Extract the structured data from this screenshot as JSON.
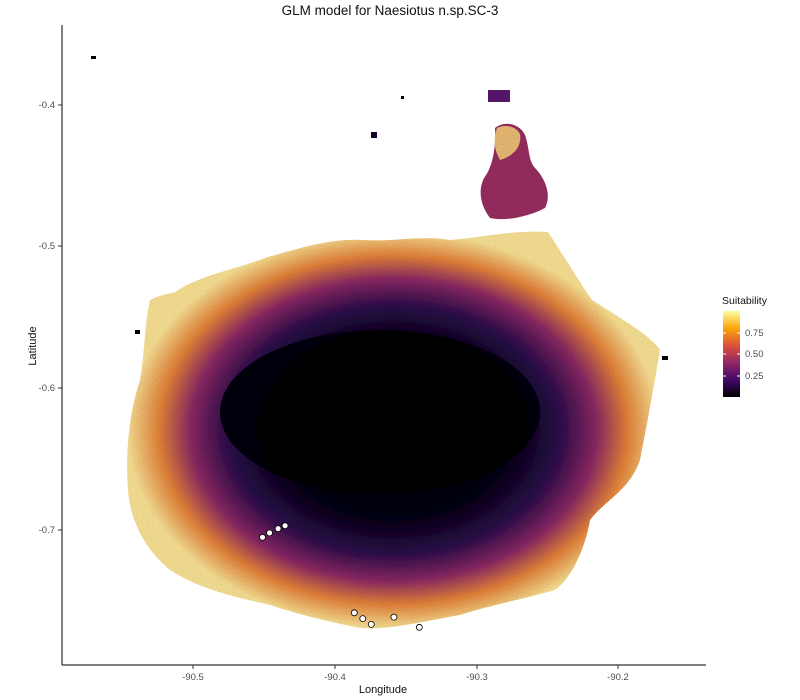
{
  "chart_data": {
    "type": "heatmap",
    "title": "GLM model for Naesiotus n.sp.SC-3",
    "xlabel": "Longitude",
    "ylabel": "Latitude",
    "x_ticks": [
      "-90.5",
      "-90.4",
      "-90.3",
      "-90.2"
    ],
    "y_ticks": [
      "-0.4",
      "-0.5",
      "-0.6",
      "-0.7"
    ],
    "xlim": [
      -90.595,
      -90.139
    ],
    "ylim": [
      -0.788,
      -0.347
    ],
    "legend": {
      "title": "Suitability",
      "placement": "right",
      "labels": [
        "0.75",
        "0.50",
        "0.25"
      ],
      "label_values": [
        0.75,
        0.5,
        0.25
      ],
      "range": [
        0,
        1
      ],
      "colors": [
        "#000004",
        "#420a68",
        "#932667",
        "#dd513a",
        "#fca50a",
        "#fcffa4"
      ]
    },
    "occurrence_points": [
      {
        "lon": -90.453,
        "lat": -0.7
      },
      {
        "lon": -90.448,
        "lat": -0.697
      },
      {
        "lon": -90.442,
        "lat": -0.694
      },
      {
        "lon": -90.437,
        "lat": -0.692
      },
      {
        "lon": -90.388,
        "lat": -0.752
      },
      {
        "lon": -90.382,
        "lat": -0.756
      },
      {
        "lon": -90.376,
        "lat": -0.76
      },
      {
        "lon": -90.36,
        "lat": -0.755
      },
      {
        "lon": -90.342,
        "lat": -0.762
      }
    ]
  }
}
